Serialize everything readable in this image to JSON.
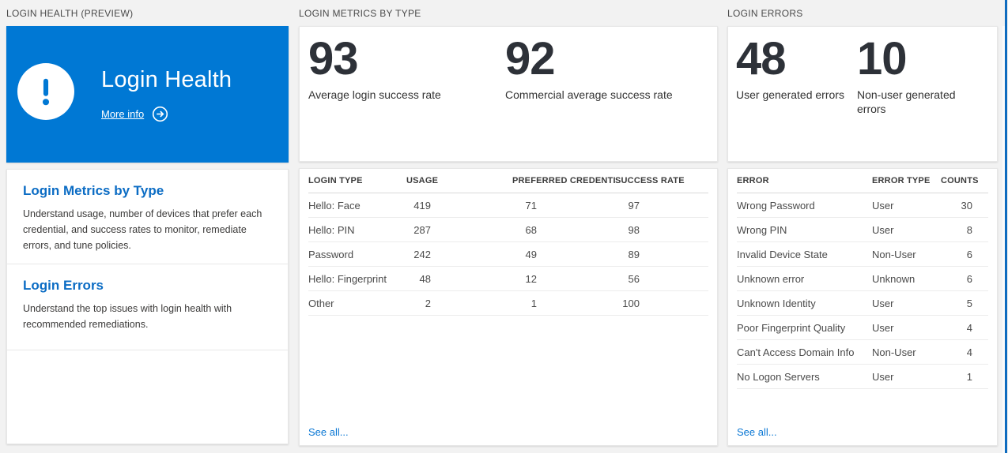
{
  "colors": {
    "accent_blue": "#0078d4",
    "heading_blue": "#0b6cc4",
    "link_blue": "#0a77d4",
    "page_background": "#f2f2f2"
  },
  "login_health": {
    "section_header": "LOGIN HEALTH (PREVIEW)",
    "tile": {
      "title": "Login Health",
      "more_info_label": "More info",
      "icons": [
        "exclamation-icon",
        "arrow-right-circle-icon"
      ]
    },
    "info_sections": [
      {
        "title": "Login Metrics by Type",
        "description": "Understand usage, number of devices that prefer each credential, and success rates to monitor, remediate errors, and tune policies."
      },
      {
        "title": "Login Errors",
        "description": "Understand the top issues with login health with recommended remediations."
      }
    ]
  },
  "login_metrics": {
    "section_header": "LOGIN METRICS BY TYPE",
    "stats": [
      {
        "value": "93",
        "label": "Average login success rate"
      },
      {
        "value": "92",
        "label": "Commercial average success rate"
      }
    ],
    "table": {
      "columns": [
        "LOGIN TYPE",
        "USAGE",
        "PREFERRED CREDENTIAL",
        "SUCCESS RATE"
      ],
      "rows": [
        [
          "Hello: Face",
          "419",
          "71",
          "97"
        ],
        [
          "Hello: PIN",
          "287",
          "68",
          "98"
        ],
        [
          "Password",
          "242",
          "49",
          "89"
        ],
        [
          "Hello: Fingerprint",
          "48",
          "12",
          "56"
        ],
        [
          "Other",
          "2",
          "1",
          "100"
        ]
      ]
    },
    "see_all_label": "See all..."
  },
  "login_errors": {
    "section_header": "LOGIN ERRORS",
    "stats": [
      {
        "value": "48",
        "label": "User generated errors"
      },
      {
        "value": "10",
        "label": "Non-user generated errors"
      }
    ],
    "table": {
      "columns": [
        "ERROR",
        "ERROR TYPE",
        "COUNTS"
      ],
      "rows": [
        [
          "Wrong Password",
          "User",
          "30"
        ],
        [
          "Wrong PIN",
          "User",
          "8"
        ],
        [
          "Invalid Device State",
          "Non-User",
          "6"
        ],
        [
          "Unknown error",
          "Unknown",
          "6"
        ],
        [
          "Unknown Identity",
          "User",
          "5"
        ],
        [
          "Poor Fingerprint Quality",
          "User",
          "4"
        ],
        [
          "Can't Access Domain Info",
          "Non-User",
          "4"
        ],
        [
          "No Logon Servers",
          "User",
          "1"
        ]
      ]
    },
    "see_all_label": "See all..."
  }
}
